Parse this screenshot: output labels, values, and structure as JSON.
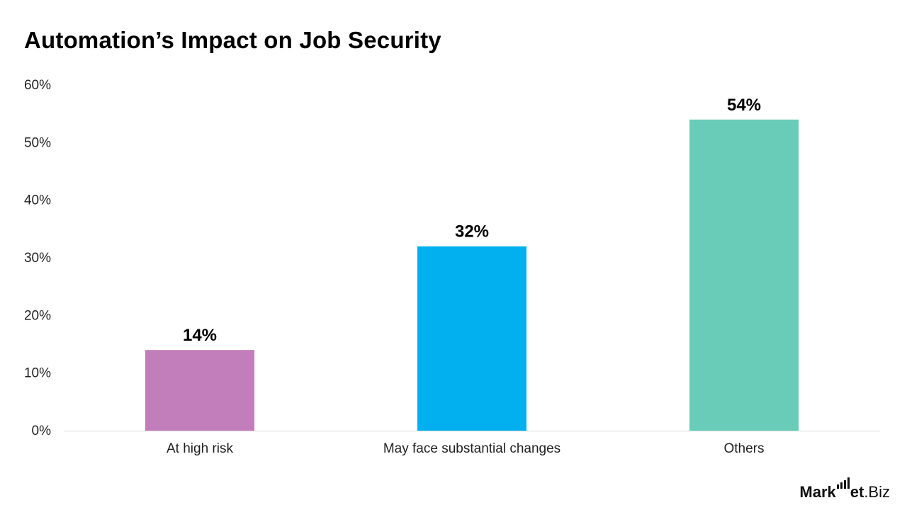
{
  "chart_data": {
    "type": "bar",
    "title": "Automation’s Impact on Job Security",
    "categories": [
      "At high risk",
      "May face substantial changes",
      "Others"
    ],
    "values": [
      14,
      32,
      54
    ],
    "data_labels": [
      "14%",
      "32%",
      "54%"
    ],
    "colors": [
      "#c27dbb",
      "#03b0ef",
      "#69ccb8"
    ],
    "ylim": [
      0,
      60
    ],
    "yticks": [
      0,
      10,
      20,
      30,
      40,
      50,
      60
    ],
    "ytick_labels": [
      "0%",
      "10%",
      "20%",
      "30%",
      "40%",
      "50%",
      "60%"
    ],
    "grid": false,
    "legend": "none"
  },
  "brand": {
    "logo_text": "Market.Biz"
  }
}
